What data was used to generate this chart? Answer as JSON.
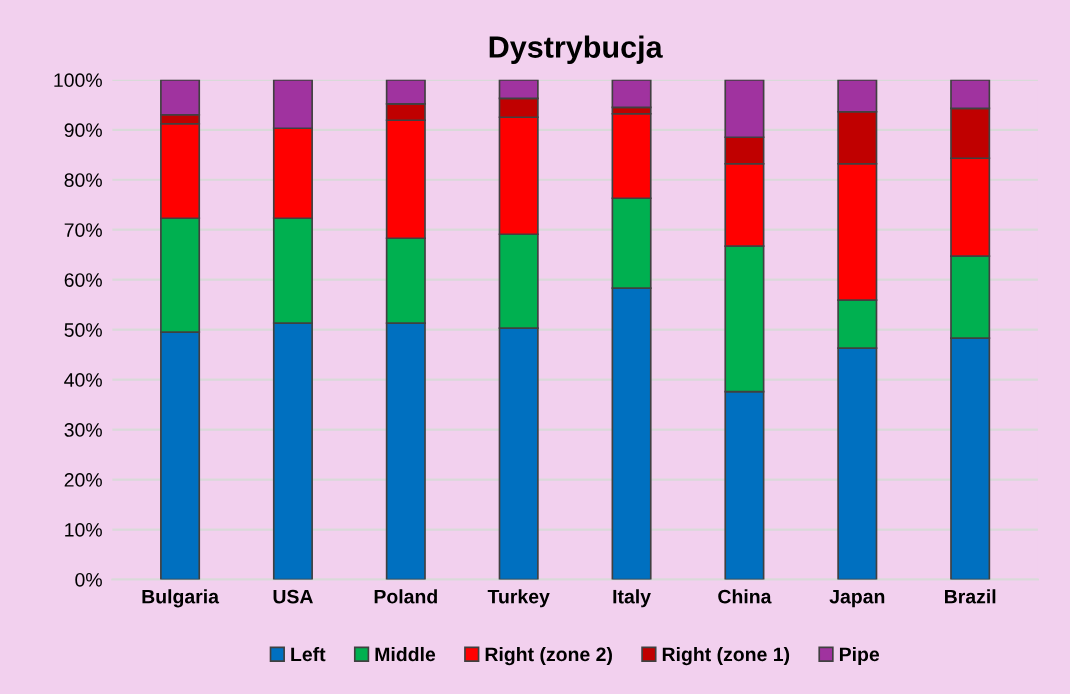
{
  "chart_data": {
    "type": "bar",
    "title": "Dystrybucja",
    "stacked": true,
    "categories": [
      "Bulgaria",
      "USA",
      "Poland",
      "Turkey",
      "Italy",
      "China",
      "Japan",
      "Brazil"
    ],
    "series": [
      {
        "name": "Left",
        "color": "#0070c0",
        "values": [
          49.5,
          51.3,
          51.3,
          50.3,
          58.3,
          37.6,
          46.3,
          48.3
        ]
      },
      {
        "name": "Middle",
        "color": "#00b050",
        "values": [
          22.8,
          21.0,
          17.0,
          18.8,
          18.0,
          29.1,
          9.6,
          16.4
        ]
      },
      {
        "name": "Right (zone 2)",
        "color": "#ff0000",
        "values": [
          18.9,
          18.0,
          23.6,
          23.4,
          16.9,
          16.5,
          27.3,
          19.6
        ]
      },
      {
        "name": "Right (zone 1)",
        "color": "#c00000",
        "values": [
          1.8,
          0,
          3.3,
          3.8,
          1.3,
          5.3,
          10.4,
          10.0
        ]
      },
      {
        "name": "Pipe",
        "color": "#a0339f",
        "values": [
          7.0,
          9.7,
          4.8,
          3.7,
          5.5,
          11.5,
          6.4,
          5.7
        ]
      }
    ],
    "ylim": [
      0,
      100
    ],
    "yticks": [
      {
        "value": 0,
        "label": "0%"
      },
      {
        "value": 10,
        "label": "10%"
      },
      {
        "value": 20,
        "label": "20%"
      },
      {
        "value": 30,
        "label": "30%"
      },
      {
        "value": 40,
        "label": "40%"
      },
      {
        "value": 50,
        "label": "50%"
      },
      {
        "value": 60,
        "label": "60%"
      },
      {
        "value": 70,
        "label": "70%"
      },
      {
        "value": 80,
        "label": "80%"
      },
      {
        "value": 90,
        "label": "90%"
      },
      {
        "value": 100,
        "label": "100%"
      }
    ],
    "grid": "y",
    "legend": "bottom"
  }
}
